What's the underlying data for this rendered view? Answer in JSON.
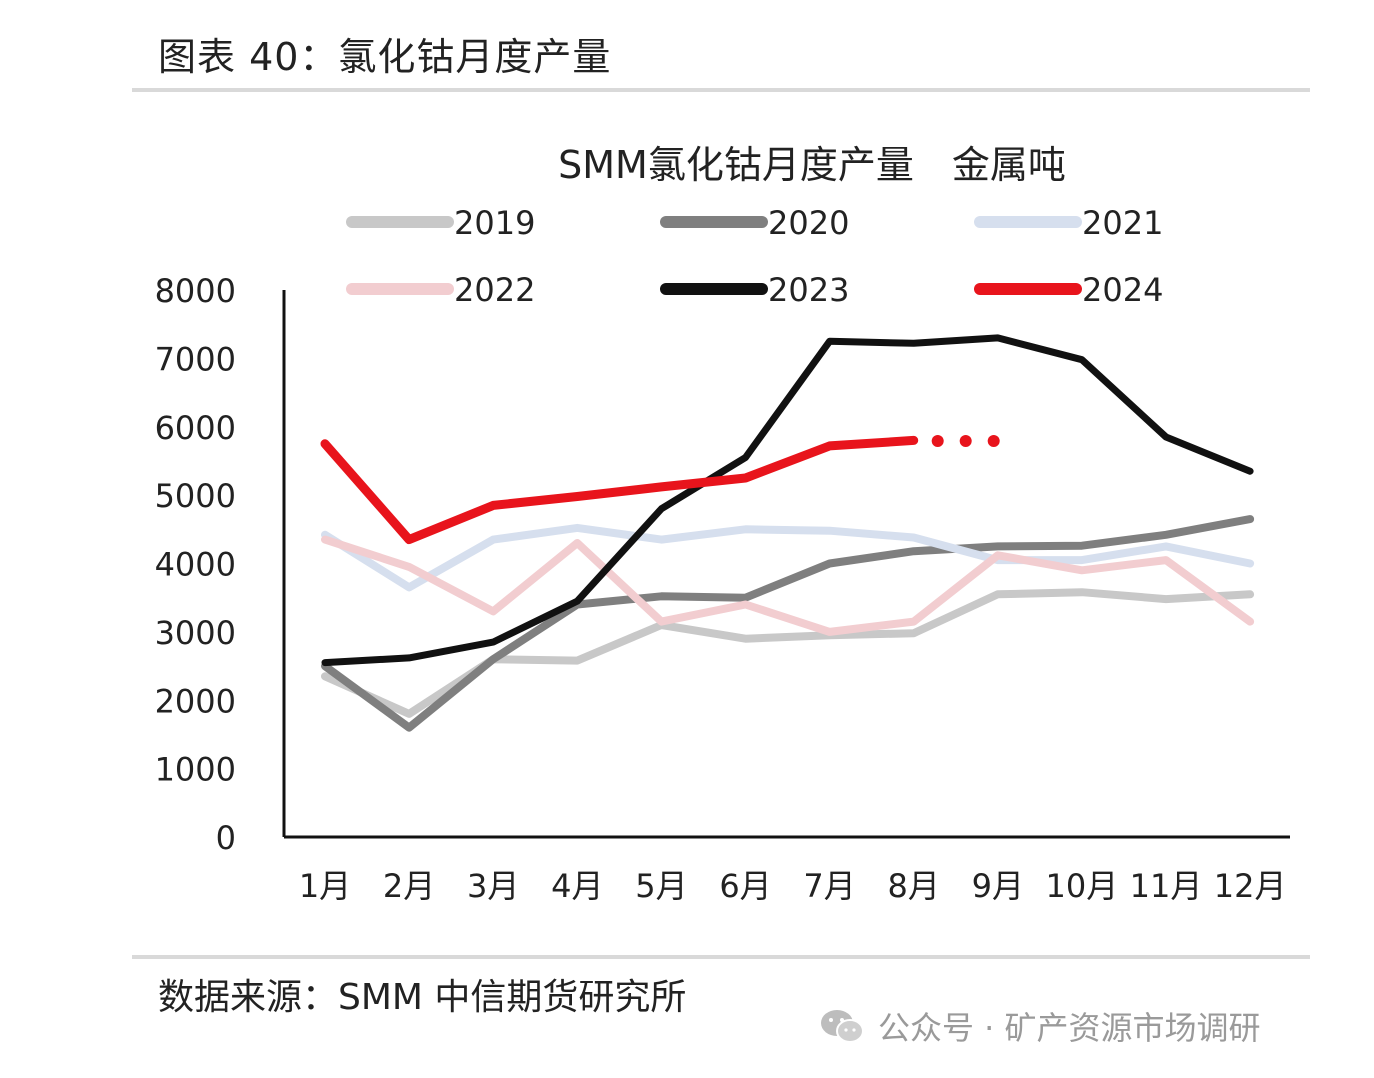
{
  "page": {
    "figure_title": "图表 40：氯化钴月度产量",
    "source": "数据来源：SMM 中信期货研究所",
    "watermark": "公众号 · 矿产资源市场调研"
  },
  "chart_data": {
    "type": "line",
    "title": "SMM氯化钴月度产量　金属吨",
    "xlabel": "",
    "ylabel": "",
    "categories": [
      "1月",
      "2月",
      "3月",
      "4月",
      "5月",
      "6月",
      "7月",
      "8月",
      "9月",
      "10月",
      "11月",
      "12月"
    ],
    "ylim": [
      0,
      8000
    ],
    "yticks": [
      "0",
      "1000",
      "2000",
      "3000",
      "4000",
      "5000",
      "6000",
      "7000",
      "8000"
    ],
    "series": [
      {
        "name": "2019",
        "color": "#c8c8c8",
        "width": 8,
        "values": [
          2350,
          1800,
          2600,
          2580,
          3100,
          2900,
          2950,
          2980,
          3550,
          3580,
          3480,
          3550
        ]
      },
      {
        "name": "2020",
        "color": "#7f7f7f",
        "width": 8,
        "values": [
          2500,
          1600,
          2600,
          3400,
          3520,
          3500,
          4000,
          4180,
          4250,
          4260,
          4420,
          4650
        ]
      },
      {
        "name": "2021",
        "color": "#d6dfee",
        "width": 8,
        "values": [
          4420,
          3650,
          4350,
          4520,
          4350,
          4500,
          4480,
          4380,
          4050,
          4050,
          4250,
          4000
        ]
      },
      {
        "name": "2022",
        "color": "#f2cdd0",
        "width": 8,
        "values": [
          4350,
          3950,
          3300,
          4300,
          3150,
          3400,
          3000,
          3150,
          4120,
          3900,
          4050,
          3150
        ]
      },
      {
        "name": "2023",
        "color": "#111111",
        "width": 7,
        "values": [
          2550,
          2620,
          2850,
          3450,
          4800,
          5550,
          7250,
          7220,
          7300,
          6980,
          5850,
          5350
        ]
      },
      {
        "name": "2024",
        "color": "#e8141c",
        "width": 9,
        "values": [
          5750,
          4350,
          4850,
          4980,
          5120,
          5250,
          5720,
          5800,
          null,
          null,
          null,
          null
        ]
      }
    ],
    "trailing_dots": {
      "series": "2024",
      "count": 3,
      "after_month": "8月",
      "value": 5850
    },
    "legend_position": "top"
  }
}
